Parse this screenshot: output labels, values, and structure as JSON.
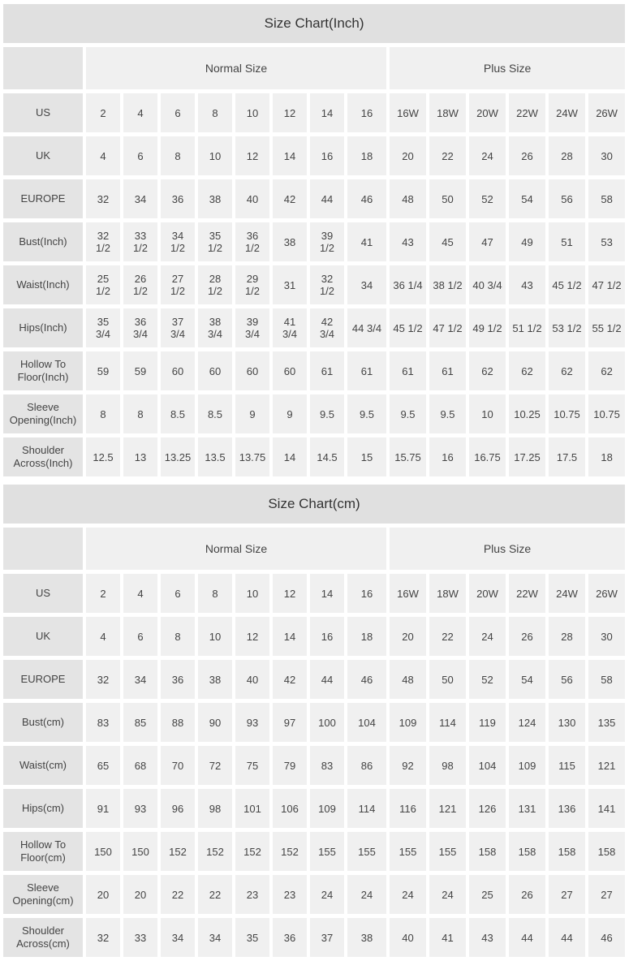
{
  "colors": {
    "page_bg": "#ffffff",
    "title_bg": "#e0e0e0",
    "title_text": "#333333",
    "label_bg": "#e4e4e4",
    "cell_bg": "#f0f0f0",
    "cell_text": "#444444"
  },
  "chart_data": [
    {
      "type": "table",
      "title": "Size Chart(Inch)",
      "column_groups": [
        {
          "label": "",
          "span": 1
        },
        {
          "label": "Normal Size",
          "span": 8
        },
        {
          "label": "Plus Size",
          "span": 6
        }
      ],
      "rows": [
        {
          "label": "US",
          "values": [
            "2",
            "4",
            "6",
            "8",
            "10",
            "12",
            "14",
            "16",
            "16W",
            "18W",
            "20W",
            "22W",
            "24W",
            "26W"
          ]
        },
        {
          "label": "UK",
          "values": [
            "4",
            "6",
            "8",
            "10",
            "12",
            "14",
            "16",
            "18",
            "20",
            "22",
            "24",
            "26",
            "28",
            "30"
          ]
        },
        {
          "label": "EUROPE",
          "values": [
            "32",
            "34",
            "36",
            "38",
            "40",
            "42",
            "44",
            "46",
            "48",
            "50",
            "52",
            "54",
            "56",
            "58"
          ]
        },
        {
          "label": "Bust(Inch)",
          "values": [
            "32\n1/2",
            "33\n1/2",
            "34\n1/2",
            "35\n1/2",
            "36\n1/2",
            "38",
            "39\n1/2",
            "41",
            "43",
            "45",
            "47",
            "49",
            "51",
            "53"
          ]
        },
        {
          "label": "Waist(Inch)",
          "values": [
            "25\n1/2",
            "26\n1/2",
            "27\n1/2",
            "28\n1/2",
            "29\n1/2",
            "31",
            "32\n1/2",
            "34",
            "36 1/4",
            "38 1/2",
            "40 3/4",
            "43",
            "45 1/2",
            "47 1/2"
          ]
        },
        {
          "label": "Hips(Inch)",
          "values": [
            "35\n3/4",
            "36\n3/4",
            "37\n3/4",
            "38\n3/4",
            "39\n3/4",
            "41\n3/4",
            "42\n3/4",
            "44 3/4",
            "45 1/2",
            "47 1/2",
            "49 1/2",
            "51 1/2",
            "53 1/2",
            "55 1/2"
          ]
        },
        {
          "label": "Hollow To Floor(Inch)",
          "values": [
            "59",
            "59",
            "60",
            "60",
            "60",
            "60",
            "61",
            "61",
            "61",
            "61",
            "62",
            "62",
            "62",
            "62"
          ]
        },
        {
          "label": "Sleeve Opening(Inch)",
          "values": [
            "8",
            "8",
            "8.5",
            "8.5",
            "9",
            "9",
            "9.5",
            "9.5",
            "9.5",
            "9.5",
            "10",
            "10.25",
            "10.75",
            "10.75"
          ]
        },
        {
          "label": "Shoulder Across(Inch)",
          "values": [
            "12.5",
            "13",
            "13.25",
            "13.5",
            "13.75",
            "14",
            "14.5",
            "15",
            "15.75",
            "16",
            "16.75",
            "17.25",
            "17.5",
            "18"
          ]
        }
      ]
    },
    {
      "type": "table",
      "title": "Size Chart(cm)",
      "column_groups": [
        {
          "label": "",
          "span": 1
        },
        {
          "label": "Normal Size",
          "span": 8
        },
        {
          "label": "Plus Size",
          "span": 6
        }
      ],
      "rows": [
        {
          "label": "US",
          "values": [
            "2",
            "4",
            "6",
            "8",
            "10",
            "12",
            "14",
            "16",
            "16W",
            "18W",
            "20W",
            "22W",
            "24W",
            "26W"
          ]
        },
        {
          "label": "UK",
          "values": [
            "4",
            "6",
            "8",
            "10",
            "12",
            "14",
            "16",
            "18",
            "20",
            "22",
            "24",
            "26",
            "28",
            "30"
          ]
        },
        {
          "label": "EUROPE",
          "values": [
            "32",
            "34",
            "36",
            "38",
            "40",
            "42",
            "44",
            "46",
            "48",
            "50",
            "52",
            "54",
            "56",
            "58"
          ]
        },
        {
          "label": "Bust(cm)",
          "values": [
            "83",
            "85",
            "88",
            "90",
            "93",
            "97",
            "100",
            "104",
            "109",
            "114",
            "119",
            "124",
            "130",
            "135"
          ]
        },
        {
          "label": "Waist(cm)",
          "values": [
            "65",
            "68",
            "70",
            "72",
            "75",
            "79",
            "83",
            "86",
            "92",
            "98",
            "104",
            "109",
            "115",
            "121"
          ]
        },
        {
          "label": "Hips(cm)",
          "values": [
            "91",
            "93",
            "96",
            "98",
            "101",
            "106",
            "109",
            "114",
            "116",
            "121",
            "126",
            "131",
            "136",
            "141"
          ]
        },
        {
          "label": "Hollow To Floor(cm)",
          "values": [
            "150",
            "150",
            "152",
            "152",
            "152",
            "152",
            "155",
            "155",
            "155",
            "155",
            "158",
            "158",
            "158",
            "158"
          ]
        },
        {
          "label": "Sleeve Opening(cm)",
          "values": [
            "20",
            "20",
            "22",
            "22",
            "23",
            "23",
            "24",
            "24",
            "24",
            "24",
            "25",
            "26",
            "27",
            "27"
          ]
        },
        {
          "label": "Shoulder Across(cm)",
          "values": [
            "32",
            "33",
            "34",
            "34",
            "35",
            "36",
            "37",
            "38",
            "40",
            "41",
            "43",
            "44",
            "44",
            "46"
          ]
        }
      ]
    }
  ]
}
